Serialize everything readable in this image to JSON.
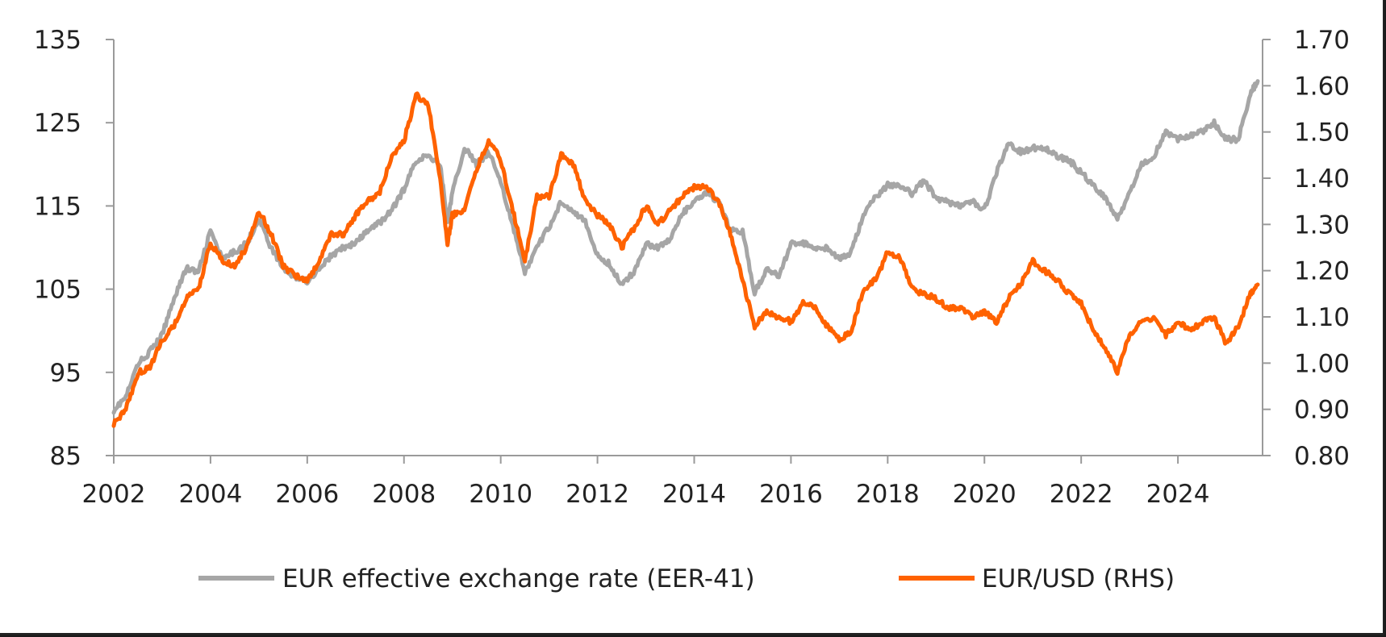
{
  "chart_data": {
    "type": "line",
    "title": "",
    "xlabel": "",
    "ylabel": "",
    "x_ticks": [
      "2002",
      "2004",
      "2006",
      "2008",
      "2010",
      "2012",
      "2014",
      "2016",
      "2018",
      "2020",
      "2022",
      "2024"
    ],
    "xlim": [
      2002,
      2025.75
    ],
    "y_left": {
      "ticks": [
        "85",
        "95",
        "105",
        "115",
        "125",
        "135"
      ],
      "ylim": [
        85,
        135
      ]
    },
    "y_right": {
      "ticks": [
        "0.80",
        "0.90",
        "1.00",
        "1.10",
        "1.20",
        "1.30",
        "1.40",
        "1.50",
        "1.60",
        "1.70"
      ],
      "ylim": [
        0.8,
        1.7
      ]
    },
    "grid": false,
    "legend_position": "bottom",
    "series": [
      {
        "name": "EUR effective exchange rate (EER-41)",
        "axis": "left",
        "color": "#a6a6a6",
        "x": [
          2002.0,
          2002.25,
          2002.5,
          2002.75,
          2003.0,
          2003.25,
          2003.5,
          2003.75,
          2004.0,
          2004.25,
          2004.5,
          2004.75,
          2005.0,
          2005.25,
          2005.5,
          2005.75,
          2006.0,
          2006.25,
          2006.5,
          2006.75,
          2007.0,
          2007.25,
          2007.5,
          2007.75,
          2008.0,
          2008.25,
          2008.5,
          2008.75,
          2008.9,
          2009.0,
          2009.25,
          2009.5,
          2009.75,
          2010.0,
          2010.25,
          2010.5,
          2010.75,
          2011.0,
          2011.25,
          2011.5,
          2011.75,
          2012.0,
          2012.25,
          2012.5,
          2012.75,
          2013.0,
          2013.25,
          2013.5,
          2013.75,
          2014.0,
          2014.25,
          2014.5,
          2014.75,
          2015.0,
          2015.25,
          2015.5,
          2015.75,
          2016.0,
          2016.25,
          2016.5,
          2016.75,
          2017.0,
          2017.25,
          2017.5,
          2017.75,
          2018.0,
          2018.25,
          2018.5,
          2018.75,
          2019.0,
          2019.25,
          2019.5,
          2019.75,
          2020.0,
          2020.25,
          2020.5,
          2020.75,
          2021.0,
          2021.25,
          2021.5,
          2021.75,
          2022.0,
          2022.25,
          2022.5,
          2022.75,
          2023.0,
          2023.25,
          2023.5,
          2023.75,
          2024.0,
          2024.25,
          2024.5,
          2024.75,
          2025.0,
          2025.25,
          2025.5,
          2025.65
        ],
        "values": [
          90.5,
          92,
          96,
          97.5,
          99.5,
          104,
          107.5,
          107,
          112,
          108.5,
          109.5,
          110.5,
          113.5,
          110,
          107.5,
          106.5,
          106,
          107.5,
          109,
          110,
          110.5,
          112,
          113,
          114.5,
          117,
          120.5,
          121,
          120,
          113,
          116.5,
          122,
          120,
          121.5,
          118,
          112.5,
          107,
          110,
          112.5,
          115.5,
          114.5,
          113,
          109,
          108,
          105.5,
          107,
          110.5,
          110,
          111,
          114,
          115.5,
          116.5,
          115.5,
          112,
          112,
          104.5,
          107.5,
          106.5,
          110.5,
          110.5,
          110,
          110,
          108.5,
          109.5,
          114,
          116,
          117.5,
          117.5,
          116.5,
          118,
          116,
          115.5,
          115,
          115.5,
          114.5,
          119,
          122.5,
          121.5,
          122,
          122,
          121,
          120.5,
          119,
          117.5,
          116,
          113.5,
          116.5,
          120,
          121,
          124,
          123,
          123.5,
          124,
          125,
          123,
          123,
          128.5,
          130
        ]
      },
      {
        "name": "EUR/USD (RHS)",
        "axis": "right",
        "color": "#ff6200",
        "x": [
          2002.0,
          2002.25,
          2002.5,
          2002.75,
          2003.0,
          2003.25,
          2003.5,
          2003.75,
          2004.0,
          2004.25,
          2004.5,
          2004.75,
          2005.0,
          2005.25,
          2005.5,
          2005.75,
          2006.0,
          2006.25,
          2006.5,
          2006.75,
          2007.0,
          2007.25,
          2007.5,
          2007.75,
          2008.0,
          2008.25,
          2008.5,
          2008.75,
          2008.9,
          2009.0,
          2009.25,
          2009.5,
          2009.75,
          2010.0,
          2010.25,
          2010.5,
          2010.75,
          2011.0,
          2011.25,
          2011.5,
          2011.75,
          2012.0,
          2012.25,
          2012.5,
          2012.75,
          2013.0,
          2013.25,
          2013.5,
          2013.75,
          2014.0,
          2014.25,
          2014.5,
          2014.75,
          2015.0,
          2015.25,
          2015.5,
          2015.75,
          2016.0,
          2016.25,
          2016.5,
          2016.75,
          2017.0,
          2017.25,
          2017.5,
          2017.75,
          2018.0,
          2018.25,
          2018.5,
          2018.75,
          2019.0,
          2019.25,
          2019.5,
          2019.75,
          2020.0,
          2020.25,
          2020.5,
          2020.75,
          2021.0,
          2021.25,
          2021.5,
          2021.75,
          2022.0,
          2022.25,
          2022.5,
          2022.75,
          2023.0,
          2023.25,
          2023.5,
          2023.75,
          2024.0,
          2024.25,
          2024.5,
          2024.75,
          2025.0,
          2025.25,
          2025.5,
          2025.65
        ],
        "values": [
          0.87,
          0.9,
          0.98,
          0.99,
          1.05,
          1.08,
          1.14,
          1.16,
          1.26,
          1.22,
          1.21,
          1.25,
          1.33,
          1.28,
          1.21,
          1.19,
          1.18,
          1.22,
          1.28,
          1.28,
          1.32,
          1.35,
          1.37,
          1.45,
          1.48,
          1.58,
          1.56,
          1.4,
          1.26,
          1.32,
          1.33,
          1.42,
          1.48,
          1.44,
          1.33,
          1.22,
          1.36,
          1.36,
          1.45,
          1.43,
          1.35,
          1.32,
          1.3,
          1.25,
          1.29,
          1.34,
          1.3,
          1.33,
          1.36,
          1.38,
          1.38,
          1.35,
          1.28,
          1.18,
          1.08,
          1.11,
          1.1,
          1.09,
          1.13,
          1.12,
          1.08,
          1.05,
          1.07,
          1.16,
          1.18,
          1.24,
          1.23,
          1.16,
          1.15,
          1.14,
          1.12,
          1.12,
          1.1,
          1.11,
          1.09,
          1.14,
          1.17,
          1.22,
          1.2,
          1.18,
          1.15,
          1.13,
          1.07,
          1.03,
          0.98,
          1.06,
          1.09,
          1.1,
          1.06,
          1.09,
          1.07,
          1.09,
          1.1,
          1.04,
          1.08,
          1.15,
          1.17
        ]
      }
    ]
  }
}
